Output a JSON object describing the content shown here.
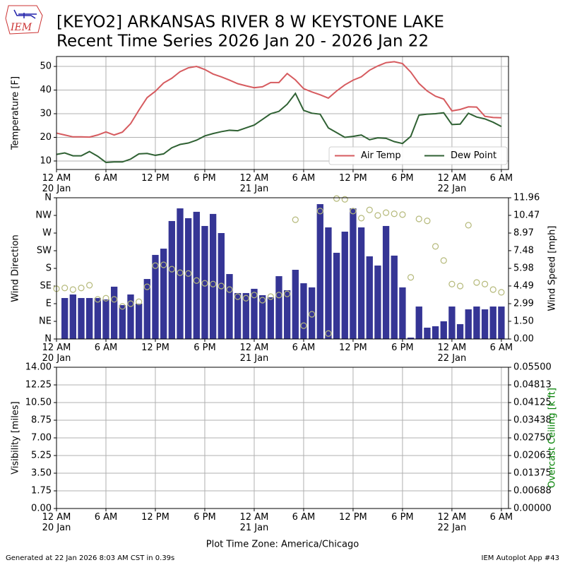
{
  "header": {
    "logo": "IEM",
    "title": "[KEYO2] ARKANSAS RIVER 8 W KEYSTONE LAKE",
    "subtitle": "Recent Time Series 2026 Jan 20 - 2026 Jan 22"
  },
  "footer": {
    "generated": "Generated at 22 Jan 2026 8:03 AM CST in 0.39s",
    "app": "IEM Autoplot App #43"
  },
  "chart_data": [
    {
      "type": "line",
      "ylabel": "Temperature [F]",
      "grid": true,
      "legend": "lower right",
      "xlim": [
        "2026-01-20T00:00",
        "2026-01-22T06:52"
      ],
      "xticks": [
        {
          "value": "2026-01-20T00:00",
          "label": "12 AM\n20 Jan"
        },
        {
          "value": "2026-01-20T06:00",
          "label": "6 AM"
        },
        {
          "value": "2026-01-20T12:00",
          "label": "12 PM"
        },
        {
          "value": "2026-01-20T18:00",
          "label": "6 PM"
        },
        {
          "value": "2026-01-21T00:00",
          "label": "12 AM\n21 Jan"
        },
        {
          "value": "2026-01-21T06:00",
          "label": "6 AM"
        },
        {
          "value": "2026-01-21T12:00",
          "label": "12 PM"
        },
        {
          "value": "2026-01-21T18:00",
          "label": "6 PM"
        },
        {
          "value": "2026-01-22T00:00",
          "label": "12 AM\n22 Jan"
        },
        {
          "value": "2026-01-22T06:00",
          "label": "6 AM"
        }
      ],
      "ylim": [
        6.4,
        54.2
      ],
      "yticks": [
        10,
        20,
        30,
        40,
        50
      ],
      "x": [
        "2026-01-20T00:00",
        "2026-01-20T01:00",
        "2026-01-20T02:00",
        "2026-01-20T03:00",
        "2026-01-20T04:00",
        "2026-01-20T05:00",
        "2026-01-20T06:00",
        "2026-01-20T07:00",
        "2026-01-20T08:00",
        "2026-01-20T09:00",
        "2026-01-20T10:00",
        "2026-01-20T11:00",
        "2026-01-20T12:00",
        "2026-01-20T13:00",
        "2026-01-20T14:00",
        "2026-01-20T15:00",
        "2026-01-20T16:00",
        "2026-01-20T17:00",
        "2026-01-20T18:00",
        "2026-01-20T19:00",
        "2026-01-20T20:00",
        "2026-01-20T21:00",
        "2026-01-20T22:00",
        "2026-01-20T23:00",
        "2026-01-21T00:00",
        "2026-01-21T01:00",
        "2026-01-21T02:00",
        "2026-01-21T03:00",
        "2026-01-21T04:00",
        "2026-01-21T05:00",
        "2026-01-21T06:00",
        "2026-01-21T07:00",
        "2026-01-21T08:00",
        "2026-01-21T09:00",
        "2026-01-21T10:00",
        "2026-01-21T11:00",
        "2026-01-21T12:00",
        "2026-01-21T13:00",
        "2026-01-21T14:00",
        "2026-01-21T15:00",
        "2026-01-21T16:00",
        "2026-01-21T17:00",
        "2026-01-21T18:00",
        "2026-01-21T19:00",
        "2026-01-21T20:00",
        "2026-01-21T21:00",
        "2026-01-21T22:00",
        "2026-01-21T23:00",
        "2026-01-22T00:00",
        "2026-01-22T01:00",
        "2026-01-22T02:00",
        "2026-01-22T03:00",
        "2026-01-22T04:00",
        "2026-01-22T05:00",
        "2026-01-22T06:00"
      ],
      "series": [
        {
          "name": "Air Temp",
          "color": "#d65b5f",
          "values": [
            21.8,
            21,
            20.2,
            20.2,
            20.1,
            21,
            22.3,
            21,
            22.2,
            25.8,
            31.5,
            36.8,
            39.5,
            43,
            45,
            47.8,
            49.4,
            50,
            48.7,
            46.8,
            45.6,
            44.2,
            42.7,
            41.8,
            41,
            41.4,
            43.2,
            43.2,
            47,
            44.3,
            40.6,
            39.2,
            38,
            36.6,
            39.6,
            42.2,
            44.2,
            45.6,
            48.4,
            50.2,
            51.6,
            52,
            51.2,
            47.6,
            42.8,
            39.6,
            37.4,
            36.2,
            31.2,
            31.8,
            32.9,
            32.8,
            28.9,
            28.4,
            28.3
          ]
        },
        {
          "name": "Dew Point",
          "color": "#2f6133",
          "values": [
            12.8,
            13.4,
            12.2,
            12.2,
            14,
            12,
            9.4,
            9.6,
            9.6,
            10.8,
            13,
            13.2,
            12.4,
            13,
            15.6,
            17,
            17.6,
            18.8,
            20.6,
            21.6,
            22.4,
            23,
            22.8,
            24,
            25.2,
            27.6,
            30,
            31,
            34,
            38.6,
            31.4,
            30.2,
            29.8,
            24,
            22,
            20,
            20.4,
            21,
            19,
            19.8,
            19.6,
            18.2,
            17.4,
            20.4,
            29.4,
            29.8,
            30,
            30.4,
            25.4,
            25.6,
            30.2,
            28.6,
            27.8,
            26.4,
            24.6
          ]
        }
      ]
    },
    {
      "type": "bar",
      "ylabel": "Wind Direction",
      "y2label": "Wind Speed [mph]",
      "grid": false,
      "xlim": [
        "2026-01-20T00:00",
        "2026-01-22T06:52"
      ],
      "xticks": [
        {
          "value": "2026-01-20T00:00",
          "label": "12 AM\n20 Jan"
        },
        {
          "value": "2026-01-20T06:00",
          "label": "6 AM"
        },
        {
          "value": "2026-01-20T12:00",
          "label": "12 PM"
        },
        {
          "value": "2026-01-20T18:00",
          "label": "6 PM"
        },
        {
          "value": "2026-01-21T00:00",
          "label": "12 AM\n21 Jan"
        },
        {
          "value": "2026-01-21T06:00",
          "label": "6 AM"
        },
        {
          "value": "2026-01-21T12:00",
          "label": "12 PM"
        },
        {
          "value": "2026-01-21T18:00",
          "label": "6 PM"
        },
        {
          "value": "2026-01-22T00:00",
          "label": "12 AM\n22 Jan"
        },
        {
          "value": "2026-01-22T06:00",
          "label": "6 AM"
        }
      ],
      "ylim": [
        0,
        360
      ],
      "yticks": [
        {
          "value": 0,
          "label": "N"
        },
        {
          "value": 45,
          "label": "NE"
        },
        {
          "value": 90,
          "label": "E"
        },
        {
          "value": 135,
          "label": "SE"
        },
        {
          "value": 180,
          "label": "S"
        },
        {
          "value": 225,
          "label": "SW"
        },
        {
          "value": 270,
          "label": "W"
        },
        {
          "value": 315,
          "label": "NW"
        },
        {
          "value": 360,
          "label": "N"
        }
      ],
      "y2lim": [
        0,
        11.96
      ],
      "y2ticks": [
        {
          "value": 0,
          "label": "0.00"
        },
        {
          "value": 1.5,
          "label": "1.50"
        },
        2.99,
        4.49,
        5.98,
        7.48,
        8.97,
        10.47,
        11.96
      ],
      "x": [
        "2026-01-20T00:00",
        "2026-01-20T01:00",
        "2026-01-20T02:00",
        "2026-01-20T03:00",
        "2026-01-20T04:00",
        "2026-01-20T05:00",
        "2026-01-20T06:00",
        "2026-01-20T07:00",
        "2026-01-20T08:00",
        "2026-01-20T09:00",
        "2026-01-20T10:00",
        "2026-01-20T11:00",
        "2026-01-20T12:00",
        "2026-01-20T13:00",
        "2026-01-20T14:00",
        "2026-01-20T15:00",
        "2026-01-20T16:00",
        "2026-01-20T17:00",
        "2026-01-20T18:00",
        "2026-01-20T19:00",
        "2026-01-20T20:00",
        "2026-01-20T21:00",
        "2026-01-20T22:00",
        "2026-01-20T23:00",
        "2026-01-21T00:00",
        "2026-01-21T01:00",
        "2026-01-21T02:00",
        "2026-01-21T03:00",
        "2026-01-21T04:00",
        "2026-01-21T05:00",
        "2026-01-21T06:00",
        "2026-01-21T07:00",
        "2026-01-21T08:00",
        "2026-01-21T09:00",
        "2026-01-21T10:00",
        "2026-01-21T11:00",
        "2026-01-21T12:00",
        "2026-01-21T13:00",
        "2026-01-21T14:00",
        "2026-01-21T15:00",
        "2026-01-21T16:00",
        "2026-01-21T17:00",
        "2026-01-21T18:00",
        "2026-01-21T19:00",
        "2026-01-21T20:00",
        "2026-01-21T21:00",
        "2026-01-21T22:00",
        "2026-01-21T23:00",
        "2026-01-22T00:00",
        "2026-01-22T01:00",
        "2026-01-22T02:00",
        "2026-01-22T03:00",
        "2026-01-22T04:00",
        "2026-01-22T05:00",
        "2026-01-22T06:00"
      ],
      "series": [
        {
          "type": "bar",
          "axis": "y2",
          "color": "#353595",
          "values": [
            null,
            3.47,
            3.77,
            3.47,
            3.47,
            3.47,
            3.35,
            4.43,
            2.87,
            3.77,
            2.99,
            5.08,
            7.12,
            7.65,
            9.99,
            11.06,
            10.23,
            10.77,
            9.57,
            10.59,
            8.97,
            5.5,
            3.89,
            3.89,
            4.25,
            3.71,
            3.53,
            5.32,
            4.13,
            5.86,
            4.72,
            4.37,
            11.42,
            9.45,
            7.3,
            9.09,
            11.06,
            9.45,
            7,
            6.22,
            9.57,
            7.06,
            4.37,
            0.12,
            2.75,
            0.96,
            1.08,
            1.5,
            2.75,
            1.26,
            2.51,
            2.75,
            2.51,
            2.75,
            2.75
          ]
        },
        {
          "type": "scatter",
          "color": "#b5b97a",
          "values": [
            128,
            130,
            126,
            130,
            137,
            101,
            104,
            101,
            83,
            90,
            95,
            133,
            187,
            189,
            178,
            169,
            167,
            149,
            142,
            140,
            135,
            126,
            108,
            104,
            112,
            99,
            108,
            112,
            115,
            304,
            34,
            63,
            326,
            14,
            358,
            356,
            326,
            308,
            329,
            315,
            322,
            319,
            317,
            157,
            306,
            301,
            236,
            200,
            140,
            135,
            290,
            144,
            140,
            126,
            119
          ]
        }
      ]
    },
    {
      "type": "line",
      "ylabel": "Visibility [miles]",
      "y2label": "Overcast Ceiling [k ft]",
      "y2label_color": "#008000",
      "xlabel": "Plot Time Zone: America/Chicago",
      "grid": true,
      "xlim": [
        "2026-01-20T00:00",
        "2026-01-22T06:52"
      ],
      "xticks": [
        {
          "value": "2026-01-20T00:00",
          "label": "12 AM\n20 Jan"
        },
        {
          "value": "2026-01-20T06:00",
          "label": "6 AM"
        },
        {
          "value": "2026-01-20T12:00",
          "label": "12 PM"
        },
        {
          "value": "2026-01-20T18:00",
          "label": "6 PM"
        },
        {
          "value": "2026-01-21T00:00",
          "label": "12 AM\n21 Jan"
        },
        {
          "value": "2026-01-21T06:00",
          "label": "6 AM"
        },
        {
          "value": "2026-01-21T12:00",
          "label": "12 PM"
        },
        {
          "value": "2026-01-21T18:00",
          "label": "6 PM"
        },
        {
          "value": "2026-01-22T00:00",
          "label": "12 AM\n22 Jan"
        },
        {
          "value": "2026-01-22T06:00",
          "label": "6 AM"
        }
      ],
      "ylim": [
        0,
        14
      ],
      "yticks": [
        {
          "value": 0,
          "label": "0.00"
        },
        1.75,
        {
          "value": 3.5,
          "label": "3.50"
        },
        5.25,
        {
          "value": 7,
          "label": "7.00"
        },
        8.75,
        {
          "value": 10.5,
          "label": "10.50"
        },
        12.25,
        {
          "value": 14,
          "label": "14.00"
        }
      ],
      "y2lim": [
        0,
        0.055
      ],
      "y2ticks": [
        {
          "value": 0,
          "label": "0.00000"
        },
        {
          "value": 0.006875,
          "label": "0.00688"
        },
        {
          "value": 0.01375,
          "label": "0.01375"
        },
        {
          "value": 0.020625,
          "label": "0.02063"
        },
        {
          "value": 0.0275,
          "label": "0.02750"
        },
        {
          "value": 0.034375,
          "label": "0.03438"
        },
        {
          "value": 0.04125,
          "label": "0.04125"
        },
        {
          "value": 0.048125,
          "label": "0.04813"
        },
        {
          "value": 0.055,
          "label": "0.05500"
        }
      ],
      "x": [],
      "series": []
    }
  ]
}
